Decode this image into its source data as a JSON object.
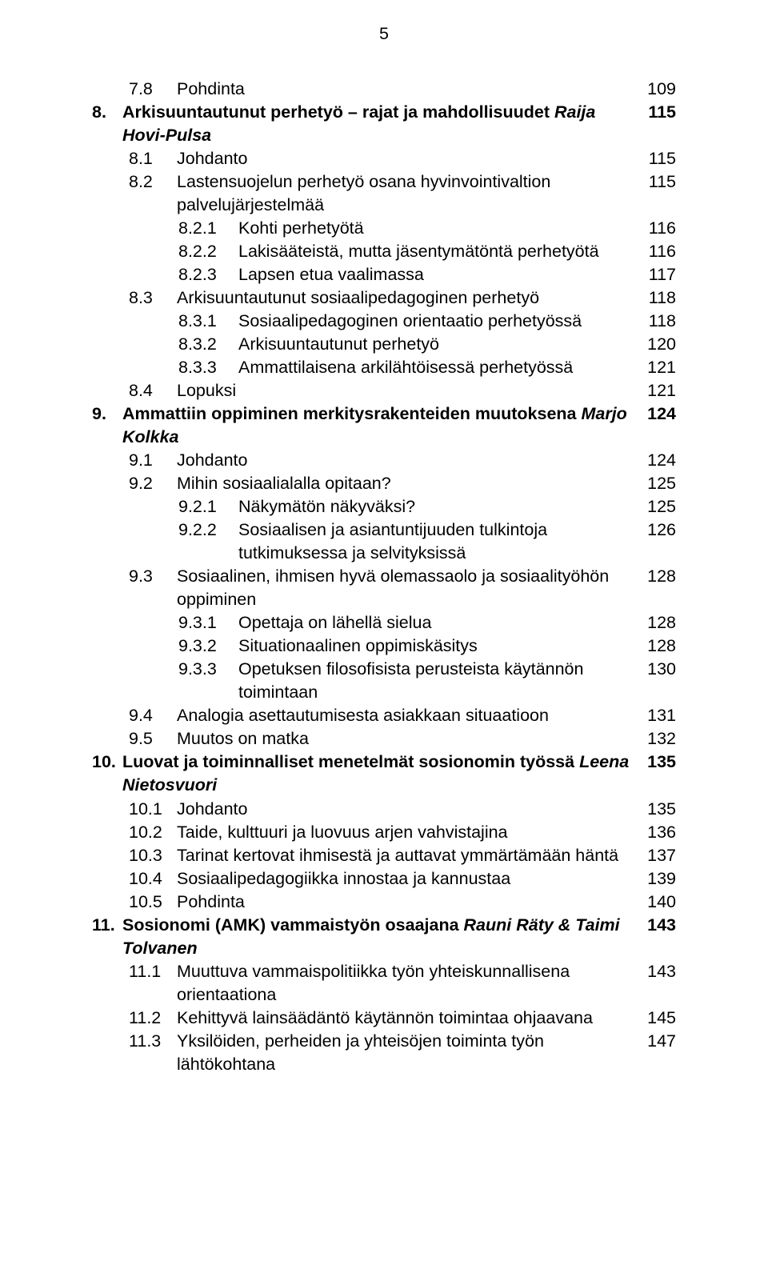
{
  "page_number": "5",
  "entries": [
    {
      "level": 1,
      "num": "7.8",
      "label": "Pohdinta",
      "page": "109"
    },
    {
      "level": 0,
      "num": "8.",
      "label": "Arkisuuntautunut perhetyö – rajat ja mahdollisuudet ",
      "italic_tail": "Raija Hovi-Pulsa",
      "page": "115",
      "bold": true
    },
    {
      "level": 1,
      "num": "8.1",
      "label": "Johdanto",
      "page": "115"
    },
    {
      "level": 1,
      "num": "8.2",
      "label": "Lastensuojelun perhetyö osana hyvinvointivaltion palvelujärjestelmää",
      "page": "115"
    },
    {
      "level": 2,
      "num": "8.2.1",
      "label": "Kohti perhetyötä",
      "page": "116"
    },
    {
      "level": 2,
      "num": "8.2.2",
      "label": "Lakisääteistä, mutta jäsentymätöntä perhetyötä",
      "page": "116"
    },
    {
      "level": 2,
      "num": "8.2.3",
      "label": "Lapsen etua vaalimassa",
      "page": "117"
    },
    {
      "level": 1,
      "num": "8.3",
      "label": "Arkisuuntautunut sosiaalipedagoginen perhetyö",
      "page": "118"
    },
    {
      "level": 2,
      "num": "8.3.1",
      "label": "Sosiaalipedagoginen orientaatio perhetyössä",
      "page": "118"
    },
    {
      "level": 2,
      "num": "8.3.2",
      "label": "Arkisuuntautunut perhetyö",
      "page": "120"
    },
    {
      "level": 2,
      "num": "8.3.3",
      "label": "Ammattilaisena arkilähtöisessä perhetyössä",
      "page": "121"
    },
    {
      "level": 1,
      "num": "8.4",
      "label": "Lopuksi",
      "page": "121"
    },
    {
      "level": 0,
      "num": "9.",
      "label": "Ammattiin oppiminen merkitysrakenteiden muutoksena ",
      "italic_tail": "Marjo Kolkka",
      "page": "124",
      "bold": true
    },
    {
      "level": 1,
      "num": "9.1",
      "label": "Johdanto",
      "page": "124"
    },
    {
      "level": 1,
      "num": "9.2",
      "label": "Mihin sosiaalialalla opitaan?",
      "page": "125"
    },
    {
      "level": 2,
      "num": "9.2.1",
      "label": "Näkymätön näkyväksi?",
      "page": "125"
    },
    {
      "level": 2,
      "num": "9.2.2",
      "label": "Sosiaalisen ja asiantuntijuuden tulkintoja tutkimuksessa ja selvityksissä",
      "page": "126"
    },
    {
      "level": 1,
      "num": "9.3",
      "label": "Sosiaalinen, ihmisen hyvä olemassaolo ja sosiaalityöhön oppiminen",
      "page": "128"
    },
    {
      "level": 2,
      "num": "9.3.1",
      "label": "Opettaja on lähellä sielua",
      "page": "128"
    },
    {
      "level": 2,
      "num": "9.3.2",
      "label": "Situationaalinen oppimiskäsitys",
      "page": "128"
    },
    {
      "level": 2,
      "num": "9.3.3",
      "label": "Opetuksen filosofisista perusteista käytännön toimintaan",
      "page": "130"
    },
    {
      "level": 1,
      "num": "9.4",
      "label": "Analogia asettautumisesta asiakkaan situaatioon",
      "page": "131"
    },
    {
      "level": 1,
      "num": "9.5",
      "label": "Muutos on matka",
      "page": "132"
    },
    {
      "level": 0,
      "num": "10.",
      "label": "Luovat ja toiminnalliset menetelmät sosionomin työssä ",
      "italic_tail": "Leena Nietosvuori",
      "page": "135",
      "bold": true
    },
    {
      "level": 1,
      "num": "10.1",
      "label": "Johdanto",
      "page": "135"
    },
    {
      "level": 1,
      "num": "10.2",
      "label": "Taide, kulttuuri ja luovuus arjen vahvistajina",
      "page": "136"
    },
    {
      "level": 1,
      "num": "10.3",
      "label": "Tarinat kertovat ihmisestä ja auttavat ymmärtämään häntä",
      "page": "137"
    },
    {
      "level": 1,
      "num": "10.4",
      "label": "Sosiaalipedagogiikka innostaa ja kannustaa",
      "page": "139"
    },
    {
      "level": 1,
      "num": "10.5",
      "label": "Pohdinta",
      "page": "140"
    },
    {
      "level": 0,
      "num": "11.",
      "label": "Sosionomi (AMK) vammaistyön osaajana ",
      "italic_tail": "Rauni Räty & Taimi Tolvanen",
      "page": "143",
      "bold": true
    },
    {
      "level": 1,
      "num": "11.1",
      "label": "Muuttuva vammaispolitiikka työn yhteiskunnallisena orientaationa",
      "page": "143"
    },
    {
      "level": 1,
      "num": "11.2",
      "label": "Kehittyvä lainsäädäntö käytännön toimintaa ohjaavana",
      "page": "145"
    },
    {
      "level": 1,
      "num": "11.3",
      "label": "Yksilöiden, perheiden ja yhteisöjen toiminta työn lähtökohtana",
      "page": "147"
    }
  ]
}
